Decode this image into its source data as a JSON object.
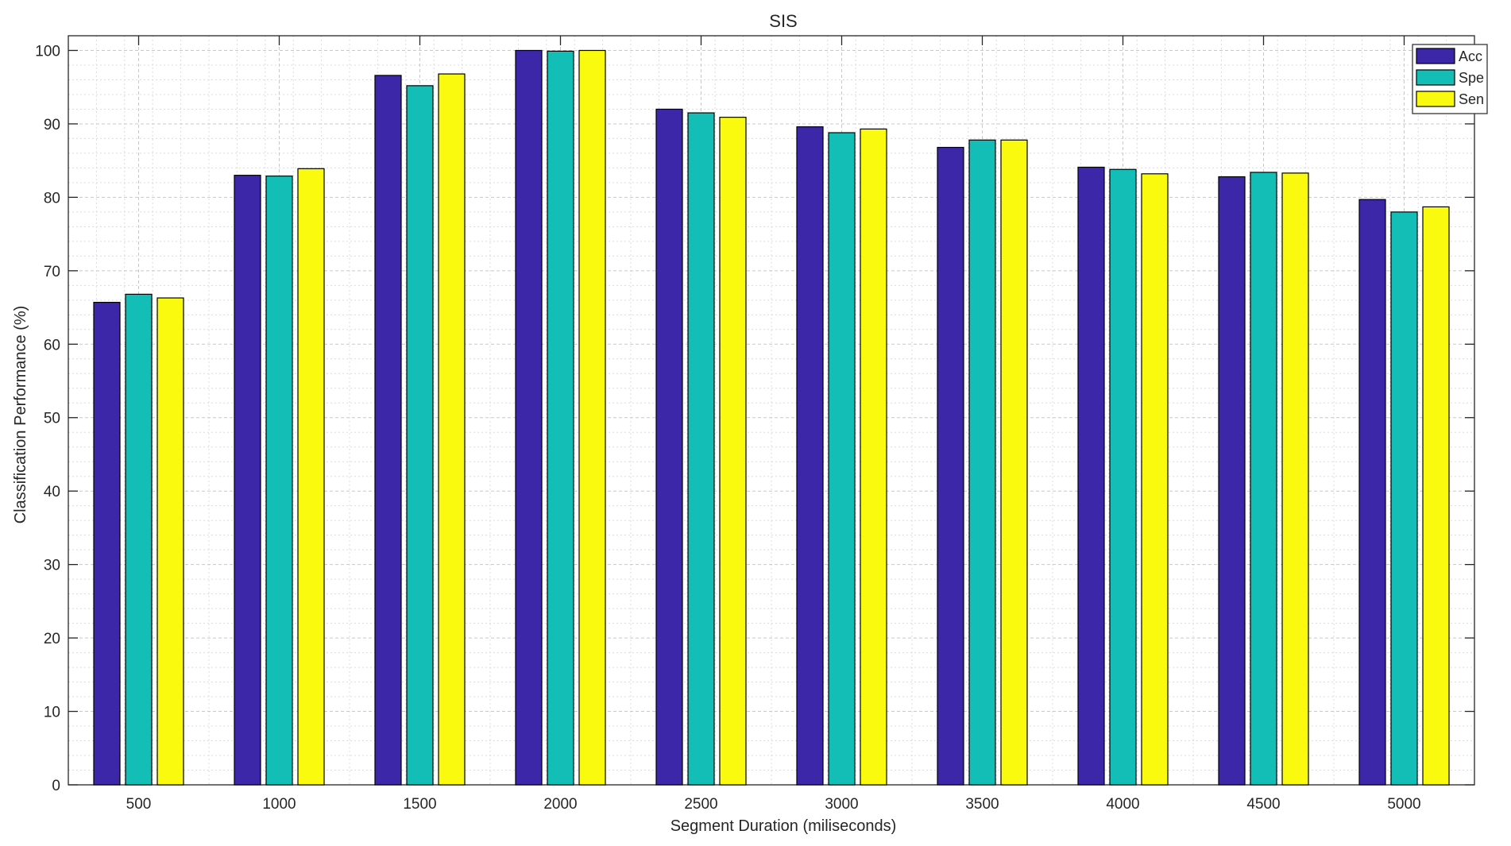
{
  "chart_data": {
    "type": "bar",
    "title": "SIS",
    "xlabel": "Segment Duration (miliseconds)",
    "ylabel": "Classification Performance (%)",
    "categories": [
      "500",
      "1000",
      "1500",
      "2000",
      "2500",
      "3000",
      "3500",
      "4000",
      "4500",
      "5000"
    ],
    "series": [
      {
        "name": "Acc",
        "color": "#3C27A8",
        "values": [
          65.7,
          83.0,
          96.6,
          100.0,
          92.0,
          89.6,
          86.8,
          84.1,
          82.8,
          79.7
        ]
      },
      {
        "name": "Spe",
        "color": "#12BEB6",
        "values": [
          66.8,
          82.9,
          95.2,
          99.9,
          91.5,
          88.8,
          87.8,
          83.8,
          83.4,
          78.0
        ]
      },
      {
        "name": "Sen",
        "color": "#FAFA0F",
        "values": [
          66.3,
          83.9,
          96.8,
          100.0,
          90.9,
          89.3,
          87.8,
          83.2,
          83.3,
          78.7
        ]
      }
    ],
    "ylim": [
      0,
      102
    ],
    "yticks": [
      0,
      10,
      20,
      30,
      40,
      50,
      60,
      70,
      80,
      90,
      100
    ],
    "grid": true,
    "minor_grid": true,
    "legend_position": "top-right"
  }
}
